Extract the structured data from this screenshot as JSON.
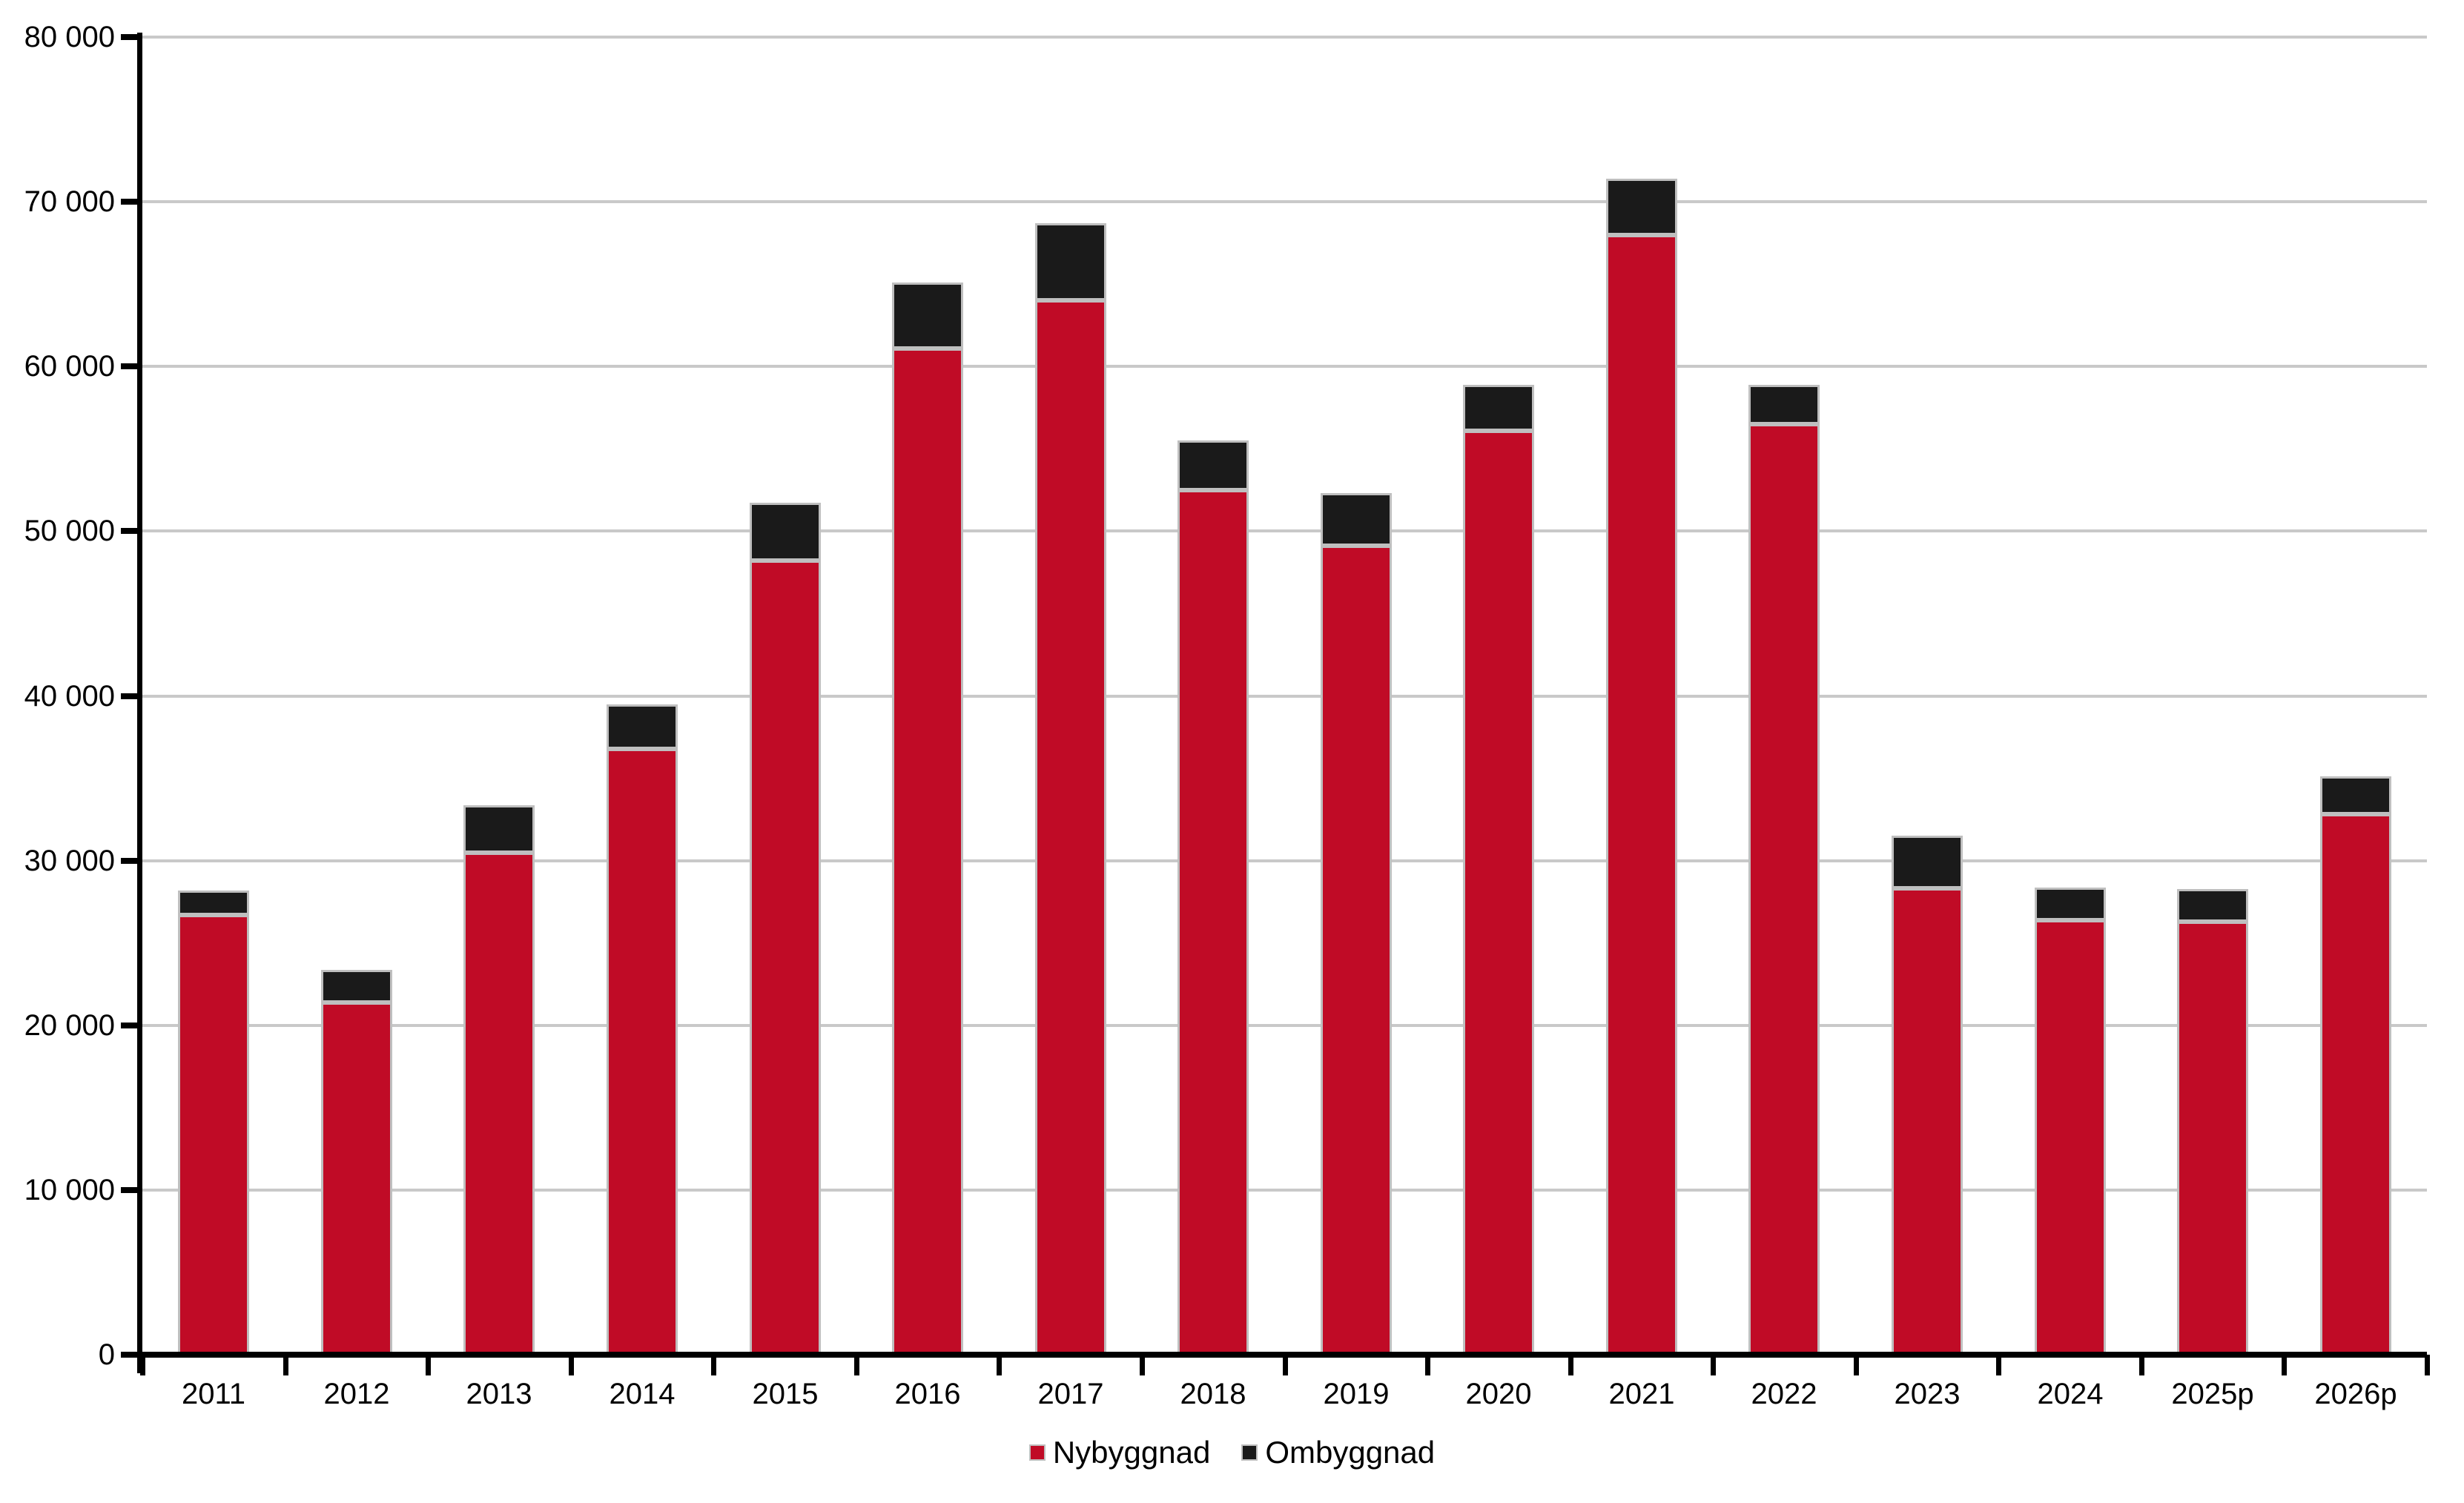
{
  "chart_data": {
    "type": "bar",
    "stacked": true,
    "title": "",
    "xlabel": "",
    "ylabel": "",
    "categories": [
      "2011",
      "2012",
      "2013",
      "2014",
      "2015",
      "2016",
      "2017",
      "2018",
      "2019",
      "2020",
      "2021",
      "2022",
      "2023",
      "2024",
      "2025p",
      "2026p"
    ],
    "series": [
      {
        "name": "Nybyggnad",
        "color": "#C00B26",
        "values": [
          26700,
          21400,
          30500,
          36800,
          48200,
          61100,
          64000,
          52500,
          49100,
          56100,
          68000,
          56500,
          28300,
          26400,
          26300,
          32800
        ]
      },
      {
        "name": "Ombyggnad",
        "color": "#1A1A1A",
        "values": [
          1500,
          2000,
          2900,
          2700,
          3500,
          4000,
          4700,
          3000,
          3200,
          2800,
          3400,
          2400,
          3200,
          2000,
          2000,
          2300
        ]
      }
    ],
    "ylim": [
      0,
      80000
    ],
    "ytick_step": 10000,
    "ytick_labels": [
      "0",
      "10 000",
      "20 000",
      "30 000",
      "40 000",
      "50 000",
      "60 000",
      "70 000",
      "80 000"
    ],
    "grid": true,
    "legend_position": "bottom-center",
    "colors": {
      "background": "#FFFFFF",
      "gridline": "#C9C9C9",
      "axis": "#000000",
      "bar_border": "#BFBFBF",
      "text": "#000000"
    }
  }
}
